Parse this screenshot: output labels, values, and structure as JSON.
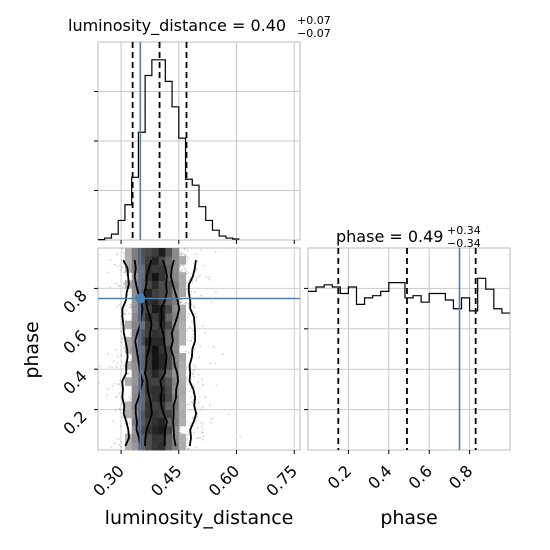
{
  "chart_data": {
    "type": "corner",
    "parameters": [
      "luminosity_distance",
      "phase"
    ],
    "ranges": {
      "luminosity_distance": [
        0.24,
        0.765
      ],
      "phase": [
        0.0,
        1.0
      ]
    },
    "truths": {
      "luminosity_distance": 0.35,
      "phase": 0.75
    },
    "titles": [
      {
        "main": "luminosity_distance = 0.40",
        "plus": "+0.07",
        "minus": "−0.07"
      },
      {
        "main": "phase = 0.49",
        "plus": "+0.34",
        "minus": "−0.34"
      }
    ],
    "quantiles": {
      "luminosity_distance": [
        0.33,
        0.4,
        0.47
      ],
      "phase": [
        0.15,
        0.49,
        0.83
      ]
    },
    "xlabels": [
      "luminosity_distance",
      "phase"
    ],
    "ylabel": "phase",
    "xticks_luminosity_distance": [
      "0.30",
      "0.45",
      "0.60",
      "0.75"
    ],
    "xticks_phase": [
      "0.2",
      "0.4",
      "0.6",
      "0.8"
    ],
    "yticks_phase": [
      "0.2",
      "0.4",
      "0.6",
      "0.8"
    ],
    "hist_luminosity_distance": {
      "bin_edges": [
        0.24,
        0.2575,
        0.275,
        0.2925,
        0.31,
        0.3275,
        0.345,
        0.3625,
        0.38,
        0.3975,
        0.415,
        0.4325,
        0.45,
        0.4675,
        0.485,
        0.5025,
        0.52,
        0.5375,
        0.555,
        0.5725,
        0.59,
        0.6075
      ],
      "counts": [
        0.2,
        1,
        3,
        10,
        18,
        32,
        55,
        84,
        92,
        92,
        81,
        68,
        52,
        31,
        28,
        17,
        10,
        5,
        2,
        1,
        0.5
      ]
    },
    "hist_phase": {
      "bin_edges": [
        0.0,
        0.04,
        0.08,
        0.12,
        0.16,
        0.2,
        0.24,
        0.28,
        0.32,
        0.36,
        0.4,
        0.44,
        0.48,
        0.52,
        0.56,
        0.6,
        0.64,
        0.68,
        0.72,
        0.76,
        0.8,
        0.84,
        0.88,
        0.92,
        0.96,
        1.0
      ],
      "counts": [
        73,
        75,
        76,
        75,
        72,
        75,
        67,
        70,
        71,
        73,
        77,
        77,
        70,
        71,
        68,
        72,
        72,
        69,
        65,
        70,
        64,
        79,
        74,
        65,
        63
      ]
    },
    "grid": true
  }
}
